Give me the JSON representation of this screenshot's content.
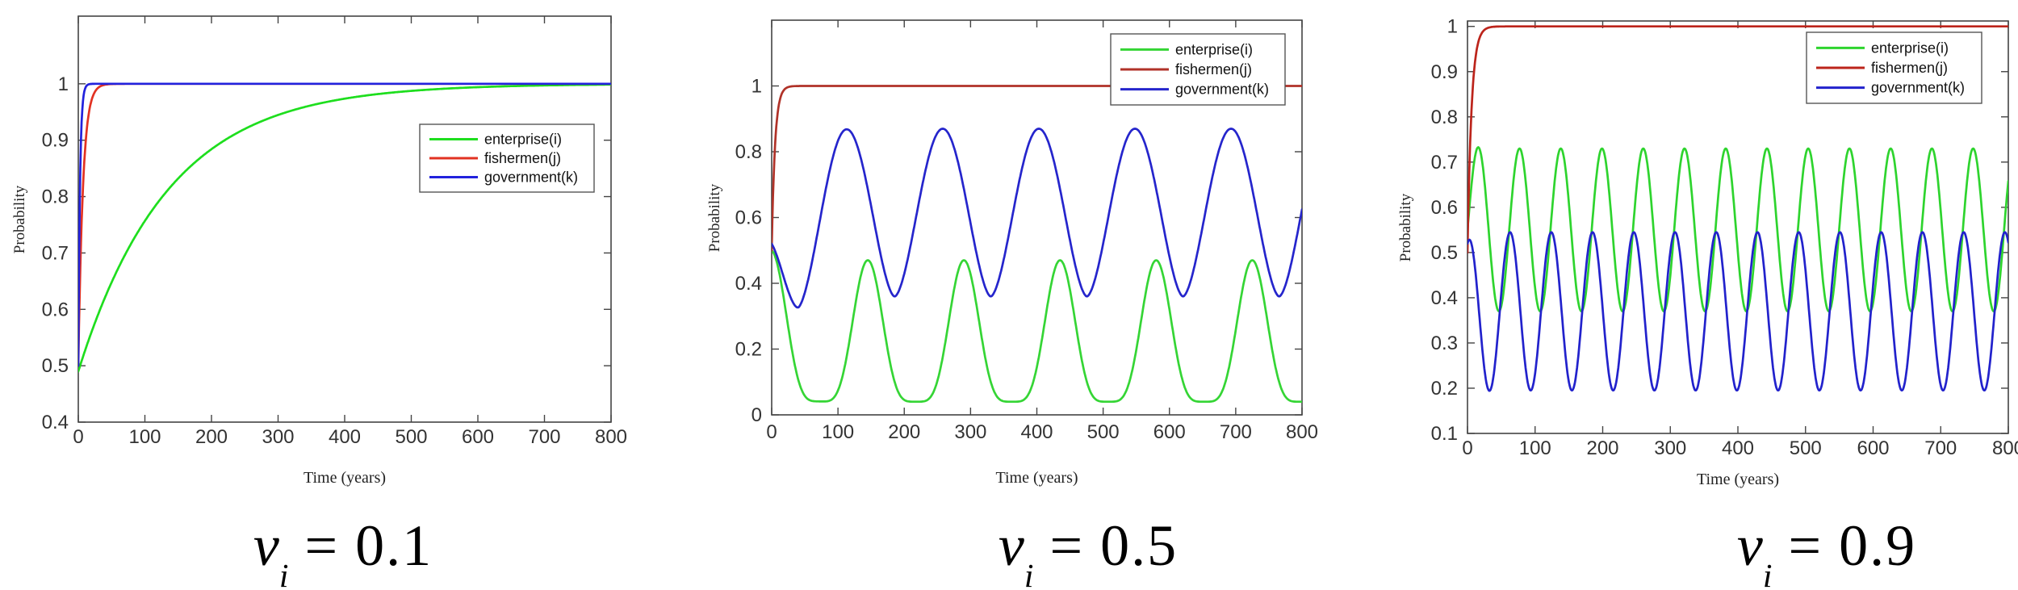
{
  "figure": {
    "background": "#ffffff",
    "axis_color": "#444444",
    "tick_label_color": "#333333",
    "n_panels": 3
  },
  "chart_data": [
    {
      "type": "line",
      "caption": {
        "var": "v",
        "sub": "i",
        "rest": " = 0.1"
      },
      "xlabel": "Time (years)",
      "ylabel": "Probability",
      "xlim": [
        0,
        800
      ],
      "ylim": [
        0.4,
        1.12
      ],
      "xticks": [
        0,
        100,
        200,
        300,
        400,
        500,
        600,
        700,
        800
      ],
      "yticks": [
        0.4,
        0.5,
        0.6,
        0.7,
        0.8,
        0.9,
        1
      ],
      "ytick_labels": [
        "0.4",
        "0.5",
        "0.6",
        "0.7",
        "0.8",
        "0.9",
        "1"
      ],
      "grid": false,
      "legend_position": "middle-right",
      "sample_t": [
        0,
        100,
        200,
        300,
        400,
        500,
        600,
        700,
        800
      ],
      "series": [
        {
          "name": "enterprise(i)",
          "color": "#1ede1e",
          "model": {
            "kind": "exp_rise",
            "y0": 0.49,
            "yinf": 1.0,
            "tau": 135
          },
          "samples_every_100y": [
            0.49,
            0.76,
            0.88,
            0.94,
            0.97,
            0.99,
            0.99,
            1.0,
            1.0
          ]
        },
        {
          "name": "fishermen(j)",
          "color": "#e23222",
          "model": {
            "kind": "exp_rise",
            "y0": 0.5,
            "yinf": 1.0,
            "tau": 7
          },
          "samples_every_100y": [
            0.5,
            1.0,
            1.0,
            1.0,
            1.0,
            1.0,
            1.0,
            1.0,
            1.0
          ]
        },
        {
          "name": "government(k)",
          "color": "#2222dd",
          "model": {
            "kind": "exp_rise",
            "y0": 0.5,
            "yinf": 1.0,
            "tau": 2.5
          },
          "samples_every_100y": [
            0.5,
            1.0,
            1.0,
            1.0,
            1.0,
            1.0,
            1.0,
            1.0,
            1.0
          ]
        }
      ]
    },
    {
      "type": "line",
      "caption": {
        "var": "v",
        "sub": "i",
        "rest": " = 0.5"
      },
      "xlabel": "Time (years)",
      "ylabel": "Probability",
      "xlim": [
        0,
        800
      ],
      "ylim": [
        0,
        1.2
      ],
      "xticks": [
        0,
        100,
        200,
        300,
        400,
        500,
        600,
        700,
        800
      ],
      "yticks": [
        0,
        0.2,
        0.4,
        0.6,
        0.8,
        1
      ],
      "ytick_labels": [
        "0",
        "0.2",
        "0.4",
        "0.6",
        "0.8",
        "1"
      ],
      "grid": false,
      "legend_position": "top-right",
      "sample_t": [
        0,
        100,
        200,
        300,
        400,
        500,
        600,
        700,
        800
      ],
      "series": [
        {
          "name": "enterprise(i)",
          "color": "#35d535",
          "model": {
            "kind": "osc",
            "min": 0.04,
            "max": 0.47,
            "period": 145,
            "peak_t": 145,
            "shape": 2.2,
            "y_start": 0.5,
            "blend": 20
          },
          "samples_every_100y": [
            0.5,
            0.07,
            0.05,
            0.43,
            0.15,
            0.04,
            0.32,
            0.26,
            0.04
          ]
        },
        {
          "name": "fishermen(j)",
          "color": "#b03228",
          "model": {
            "kind": "exp_rise",
            "y0": 0.5,
            "yinf": 1.0,
            "tau": 5
          },
          "samples_every_100y": [
            0.5,
            1.0,
            1.0,
            1.0,
            1.0,
            1.0,
            1.0,
            1.0,
            1.0
          ]
        },
        {
          "name": "government(k)",
          "color": "#2525cc",
          "model": {
            "kind": "osc",
            "min": 0.36,
            "max": 0.87,
            "period": 145,
            "peak_t": 113,
            "shape": 0.85,
            "y_start": 0.52,
            "blend": 25
          },
          "samples_every_100y": [
            0.52,
            0.83,
            0.43,
            0.58,
            0.87,
            0.52,
            0.48,
            0.86,
            0.63
          ]
        }
      ]
    },
    {
      "type": "line",
      "caption": {
        "var": "v",
        "sub": "i",
        "rest": " = 0.9"
      },
      "xlabel": "Time (years)",
      "ylabel": "Probability",
      "xlim": [
        0,
        800
      ],
      "ylim": [
        0.1,
        1.012
      ],
      "xticks": [
        0,
        100,
        200,
        300,
        400,
        500,
        600,
        700,
        800
      ],
      "yticks": [
        0.1,
        0.2,
        0.3,
        0.4,
        0.5,
        0.6,
        0.7,
        0.8,
        0.9,
        1
      ],
      "ytick_labels": [
        "0.1",
        "0.2",
        "0.3",
        "0.4",
        "0.5",
        "0.6",
        "0.7",
        "0.8",
        "0.9",
        "1"
      ],
      "grid": false,
      "legend_position": "top-right",
      "sample_t": [
        0,
        100,
        200,
        300,
        400,
        500,
        600,
        700,
        800
      ],
      "series": [
        {
          "name": "enterprise(i)",
          "color": "#2ed42e",
          "model": {
            "kind": "osc",
            "min": 0.37,
            "max": 0.73,
            "period": 61,
            "peak_t": 16,
            "shape": 1.0,
            "y_start": 0.55,
            "blend": 10
          },
          "samples_every_100y": [
            0.55,
            0.42,
            0.73,
            0.45,
            0.5,
            0.71,
            0.39,
            0.59,
            0.66
          ]
        },
        {
          "name": "fishermen(j)",
          "color": "#bc241b",
          "model": {
            "kind": "exp_rise",
            "y0": 0.5,
            "yinf": 1.0,
            "tau": 6
          },
          "samples_every_100y": [
            0.5,
            1.0,
            1.0,
            1.0,
            1.0,
            1.0,
            1.0,
            1.0,
            1.0
          ]
        },
        {
          "name": "government(k)",
          "color": "#2222cc",
          "model": {
            "kind": "osc",
            "min": 0.195,
            "max": 0.545,
            "period": 61,
            "peak_t": 63,
            "shape": 1.0,
            "y_start": 0.52,
            "blend": 10
          },
          "samples_every_100y": [
            0.52,
            0.23,
            0.37,
            0.5,
            0.2,
            0.46,
            0.43,
            0.21,
            0.52
          ]
        }
      ]
    }
  ]
}
